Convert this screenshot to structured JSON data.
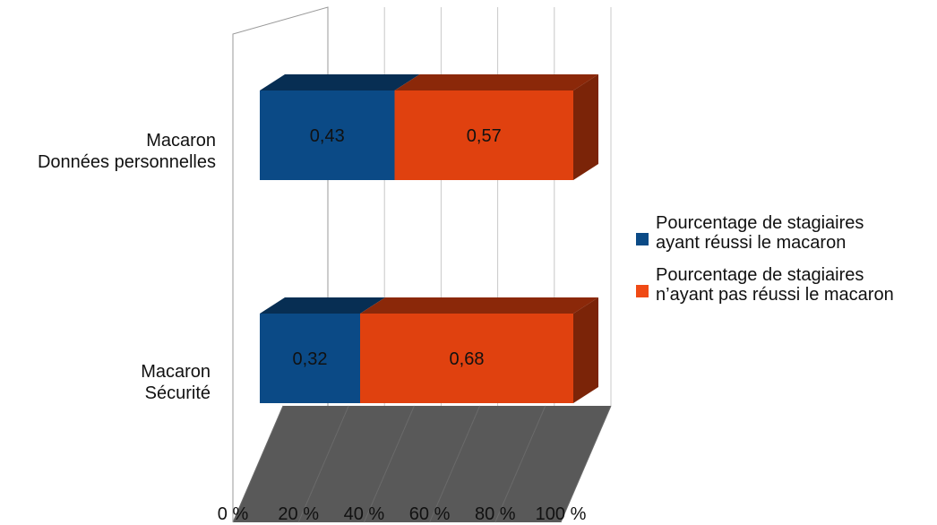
{
  "chart_data": {
    "type": "bar",
    "orientation": "horizontal",
    "stacked": true,
    "three_d": true,
    "categories": [
      [
        "Macaron",
        "Données personnelles"
      ],
      [
        "Macaron",
        "Sécurité"
      ]
    ],
    "series": [
      {
        "name": "Pourcentage de stagiaires\nayant réussi le macaron",
        "color": "#0b4a86",
        "values": [
          0.43,
          0.32
        ],
        "labels": [
          "0,43",
          "0,32"
        ]
      },
      {
        "name": "Pourcentage de stagiaires\nn’ayant pas réussi le macaron",
        "color": "#e0410f",
        "values": [
          0.57,
          0.68
        ],
        "labels": [
          "0,57",
          "0,68"
        ]
      }
    ],
    "x_ticks": [
      "0 %",
      "20 %",
      "40 %",
      "60 %",
      "80 %",
      "100 %"
    ],
    "xlim": [
      0,
      1
    ],
    "grid": true,
    "legend": "right",
    "floor_color": "#595959"
  }
}
